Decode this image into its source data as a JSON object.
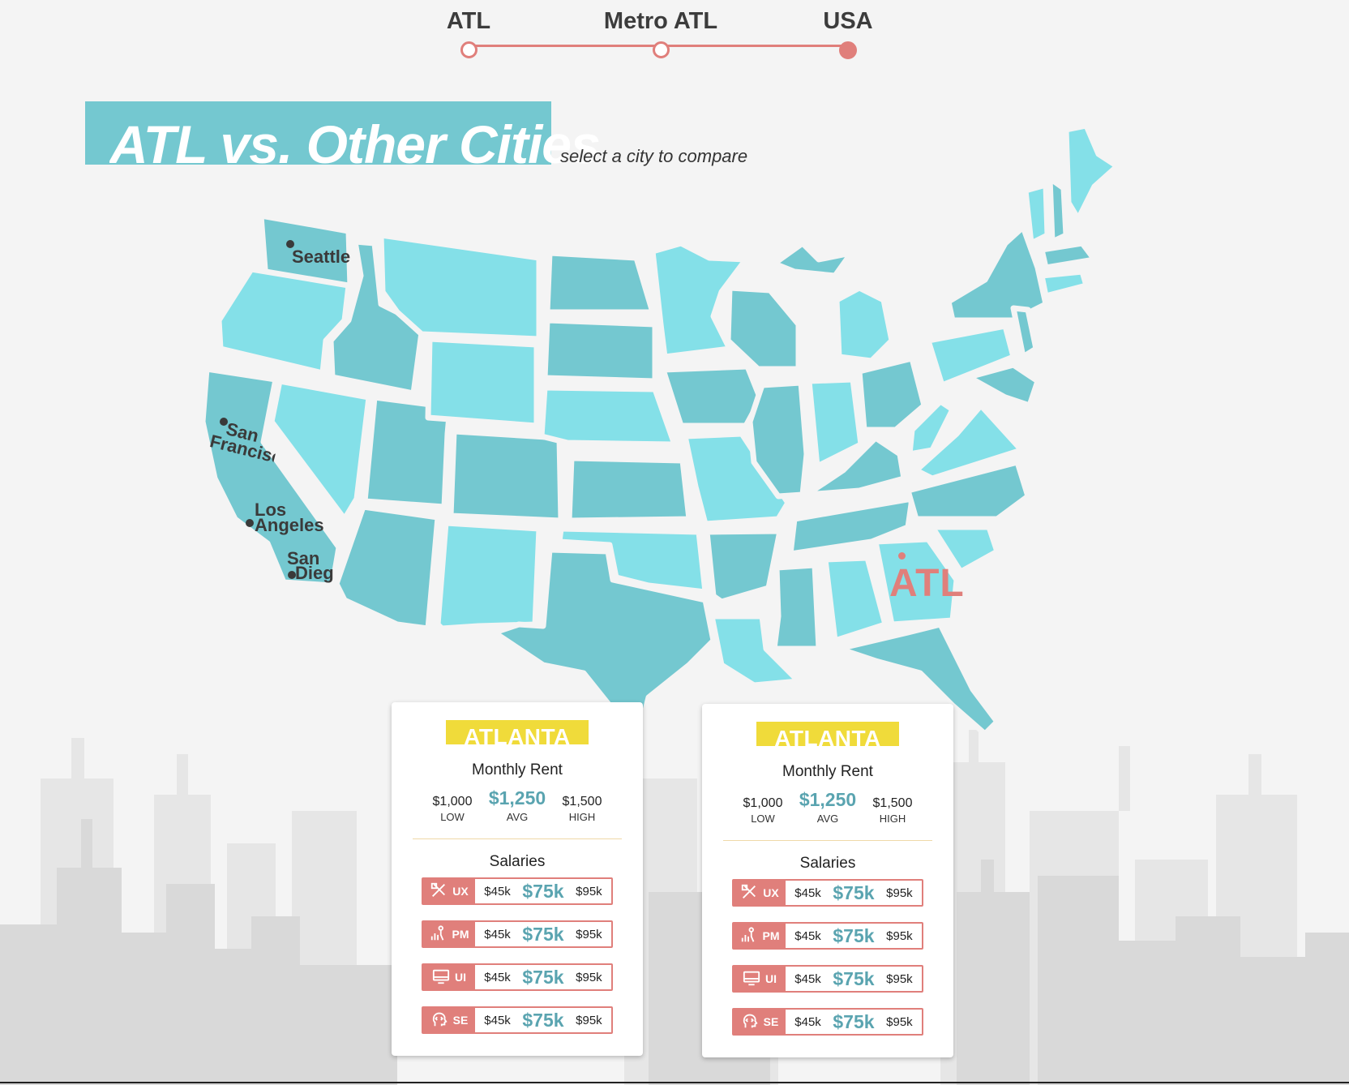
{
  "nav": {
    "stops": [
      {
        "label": "ATL",
        "active": false
      },
      {
        "label": "Metro ATL",
        "active": false
      },
      {
        "label": "USA",
        "active": true
      }
    ]
  },
  "header": {
    "title": "ATL vs. Other Cities",
    "subtitle": "select a city to compare"
  },
  "map": {
    "cities": {
      "seattle": "Seattle",
      "san_francisco_1": "San",
      "san_francisco_2": "Francisc",
      "los_angeles_1": "Los",
      "los_angeles_2": "Angeles",
      "san_diego_1": "San",
      "san_diego_2": "Dieg"
    },
    "home_label": "ATL",
    "colors": {
      "dark": "#74c8d0",
      "light": "#84e0e8",
      "accent": "#e07f7b"
    }
  },
  "cards": [
    {
      "city": "ATLANTA",
      "rent_title": "Monthly Rent",
      "rent": {
        "low": "$1,000",
        "low_label": "LOW",
        "avg": "$1,250",
        "avg_label": "AVG",
        "high": "$1,500",
        "high_label": "HIGH"
      },
      "salaries_title": "Salaries",
      "salaries": [
        {
          "role": "UX",
          "icon": "design-tools-icon",
          "low": "$45k",
          "avg": "$75k",
          "high": "$95k"
        },
        {
          "role": "PM",
          "icon": "presenter-chart-icon",
          "low": "$45k",
          "avg": "$75k",
          "high": "$95k"
        },
        {
          "role": "UI",
          "icon": "monitor-icon",
          "low": "$45k",
          "avg": "$75k",
          "high": "$95k"
        },
        {
          "role": "SE",
          "icon": "code-head-icon",
          "low": "$45k",
          "avg": "$75k",
          "high": "$95k"
        }
      ]
    },
    {
      "city": "ATLANTA",
      "rent_title": "Monthly Rent",
      "rent": {
        "low": "$1,000",
        "low_label": "LOW",
        "avg": "$1,250",
        "avg_label": "AVG",
        "high": "$1,500",
        "high_label": "HIGH"
      },
      "salaries_title": "Salaries",
      "salaries": [
        {
          "role": "UX",
          "icon": "design-tools-icon",
          "low": "$45k",
          "avg": "$75k",
          "high": "$95k"
        },
        {
          "role": "PM",
          "icon": "presenter-chart-icon",
          "low": "$45k",
          "avg": "$75k",
          "high": "$95k"
        },
        {
          "role": "UI",
          "icon": "monitor-icon",
          "low": "$45k",
          "avg": "$75k",
          "high": "$95k"
        },
        {
          "role": "SE",
          "icon": "code-head-icon",
          "low": "$45k",
          "avg": "$75k",
          "high": "$95k"
        }
      ]
    }
  ]
}
